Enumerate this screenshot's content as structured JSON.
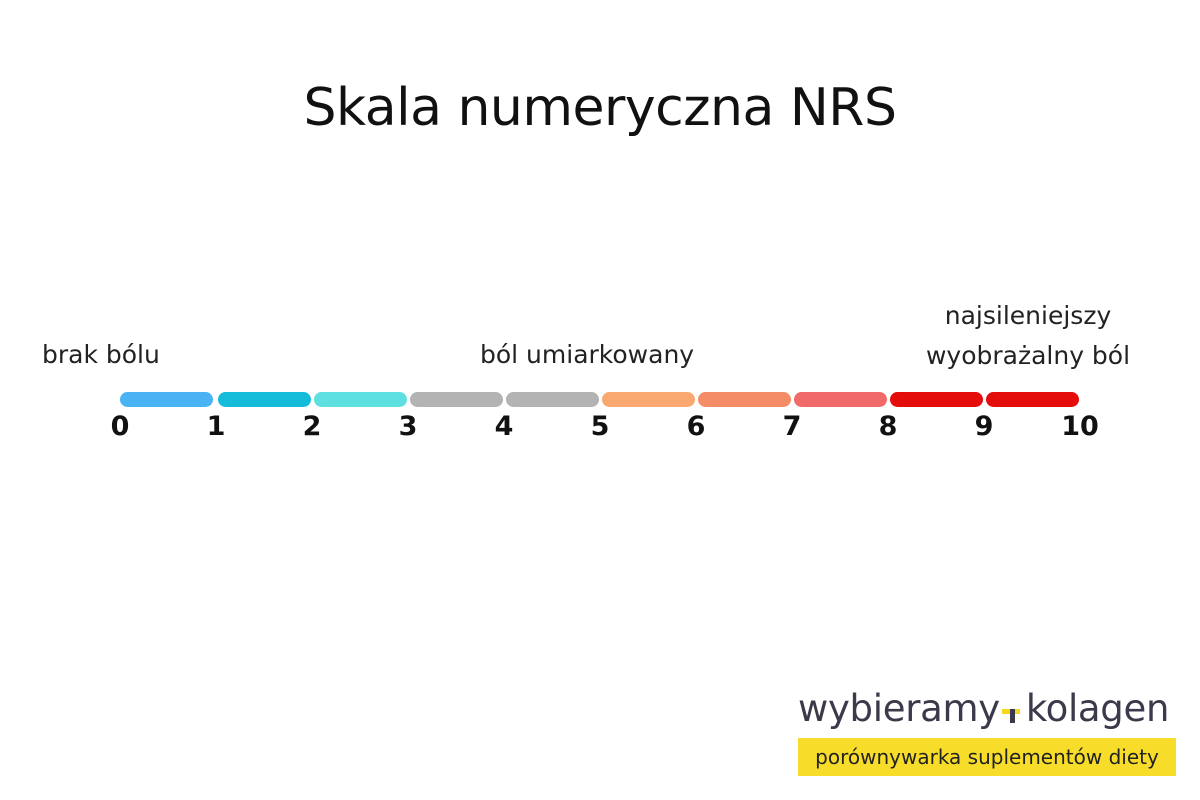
{
  "title": "Skala numeryczna NRS",
  "labels": {
    "no_pain": "brak bólu",
    "moderate": "ból umiarkowany",
    "worst_line1": "najsileniejszy",
    "worst_line2": "wyobrażalny ból"
  },
  "scale": {
    "ticks": [
      "0",
      "1",
      "2",
      "3",
      "4",
      "5",
      "6",
      "7",
      "8",
      "9",
      "10"
    ],
    "segment_colors": [
      "#4ab3f4",
      "#14bcd9",
      "#5fe0e0",
      "#b3b3b3",
      "#b3b3b3",
      "#f9a86f",
      "#f48c68",
      "#f06a6a",
      "#e50c0c",
      "#e50c0c"
    ]
  },
  "brand": {
    "name_part1": "wybieramy",
    "name_part2": "kolagen",
    "tagline": "porównywarka suplementów diety",
    "accent_color": "#f7dd2a"
  }
}
